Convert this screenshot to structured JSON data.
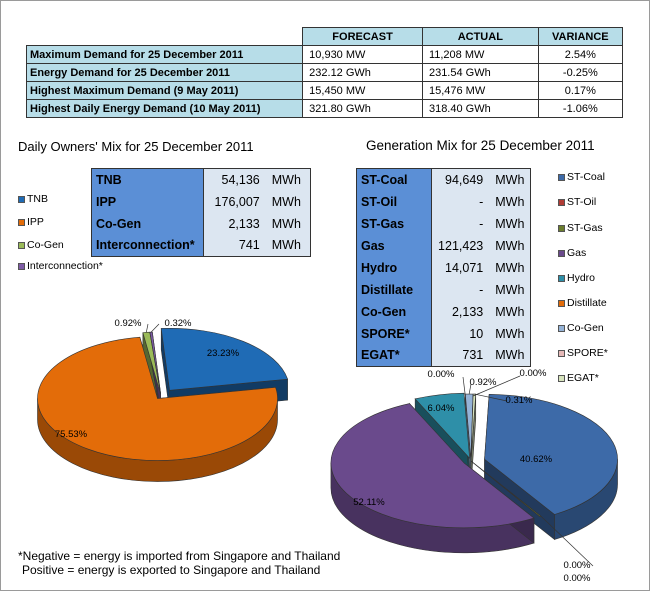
{
  "summary": {
    "headers": [
      "",
      "FORECAST",
      "ACTUAL",
      "VARIANCE"
    ],
    "rows": [
      {
        "label": "Maximum Demand for 25 December 2011",
        "forecast": "10,930  MW",
        "actual": "11,208  MW",
        "variance": "2.54%"
      },
      {
        "label": "Energy Demand for 25 December 2011",
        "forecast": "232.12  GWh",
        "actual": "231.54  GWh",
        "variance": "-0.25%"
      },
      {
        "label": "Highest Maximum Demand (9 May 2011)",
        "forecast": "15,450  MW",
        "actual": "15,476  MW",
        "variance": "0.17%"
      },
      {
        "label": "Highest Daily Energy Demand (10 May 2011)",
        "forecast": "321.80  GWh",
        "actual": "318.40  GWh",
        "variance": "-1.06%"
      }
    ]
  },
  "owners_mix": {
    "title": "Daily Owners' Mix for 25 December 2011",
    "rows": [
      {
        "name": "TNB",
        "value": "54,136",
        "unit": "MWh"
      },
      {
        "name": "IPP",
        "value": "176,007",
        "unit": "MWh"
      },
      {
        "name": "Co-Gen",
        "value": "2,133",
        "unit": "MWh"
      },
      {
        "name": "Interconnection*",
        "value": "741",
        "unit": "MWh"
      }
    ]
  },
  "generation_mix": {
    "title": "Generation Mix for 25 December 2011",
    "rows": [
      {
        "name": "ST-Coal",
        "value": "94,649",
        "unit": "MWh"
      },
      {
        "name": "ST-Oil",
        "value": "-",
        "unit": "MWh"
      },
      {
        "name": "ST-Gas",
        "value": "-",
        "unit": "MWh"
      },
      {
        "name": "Gas",
        "value": "121,423",
        "unit": "MWh"
      },
      {
        "name": "Hydro",
        "value": "14,071",
        "unit": "MWh"
      },
      {
        "name": "Distillate",
        "value": "-",
        "unit": "MWh"
      },
      {
        "name": "Co-Gen",
        "value": "2,133",
        "unit": "MWh"
      },
      {
        "name": "SPORE*",
        "value": "10",
        "unit": "MWh"
      },
      {
        "name": "EGAT*",
        "value": "731",
        "unit": "MWh"
      }
    ]
  },
  "footnote": {
    "line1": "*Negative = energy is imported from Singapore and Thailand",
    "line2": "Positive = energy is exported to Singapore and Thailand"
  },
  "chart_data": [
    {
      "type": "pie",
      "title": "Daily Owners' Mix for 25 December 2011",
      "categories": [
        "TNB",
        "IPP",
        "Co-Gen",
        "Interconnection*"
      ],
      "values": [
        23.23,
        75.53,
        0.92,
        0.32
      ],
      "labels": [
        "23.23%",
        "75.53%",
        "0.92%",
        "0.32%"
      ],
      "colors": [
        "#1f6bb5",
        "#e36c09",
        "#9bbb59",
        "#7e5ca6"
      ],
      "legend": "left"
    },
    {
      "type": "pie",
      "title": "Generation Mix for 25 December 2011",
      "categories": [
        "ST-Coal",
        "ST-Oil",
        "ST-Gas",
        "Gas",
        "Hydro",
        "Distillate",
        "Co-Gen",
        "SPORE*",
        "EGAT*"
      ],
      "values": [
        40.62,
        0.0,
        0.0,
        52.11,
        6.04,
        0.0,
        0.92,
        0.0,
        0.31
      ],
      "labels": [
        "40.62%",
        "0.00%",
        "0.00%",
        "52.11%",
        "6.04%",
        "0.00%",
        "0.92%",
        "0.00%",
        "0.31%"
      ],
      "colors": [
        "#3d6aa8",
        "#b13c35",
        "#6b7d2e",
        "#6a4a8c",
        "#2e8fa8",
        "#e36c09",
        "#95b3d7",
        "#e6b9b8",
        "#d7e4bd"
      ],
      "legend": "right"
    }
  ]
}
